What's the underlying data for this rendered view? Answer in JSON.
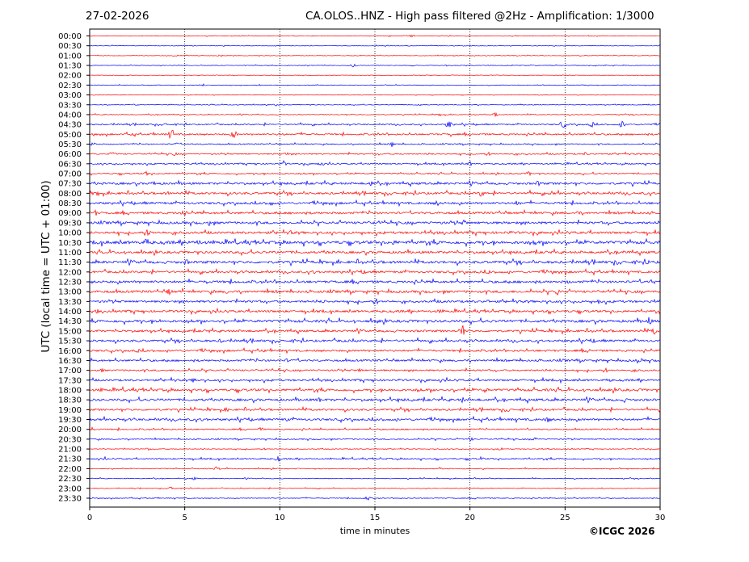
{
  "header": {
    "date": "27-02-2026",
    "title": "CA.OLOS..HNZ - High pass filtered @2Hz - Amplification: 1/3000"
  },
  "copyright": "©ICGC 2026",
  "chart_data": {
    "type": "line",
    "subtype": "helicorder",
    "xlabel": "time in minutes",
    "ylabel": "UTC (local time = UTC + 01:00)",
    "xlim": [
      0,
      30
    ],
    "x_ticks": [
      "0",
      "5",
      "10",
      "15",
      "20",
      "25",
      "30"
    ],
    "grid": "vertical dotted lines every 5 minutes",
    "trace_colors": [
      "#ff0000",
      "#0000ff"
    ],
    "rows": [
      {
        "label": "00:00",
        "color": "#ff0000",
        "activity": 0.05,
        "events": [
          [
            16.9,
            0.25
          ]
        ]
      },
      {
        "label": "00:30",
        "color": "#0000ff",
        "activity": 0.05,
        "events": []
      },
      {
        "label": "01:00",
        "color": "#ff0000",
        "activity": 0.05,
        "events": [
          [
            6.9,
            0.2
          ]
        ]
      },
      {
        "label": "01:30",
        "color": "#0000ff",
        "activity": 0.05,
        "events": [
          [
            13.9,
            0.25
          ]
        ]
      },
      {
        "label": "02:00",
        "color": "#ff0000",
        "activity": 0.04,
        "events": []
      },
      {
        "label": "02:30",
        "color": "#0000ff",
        "activity": 0.05,
        "events": [
          [
            6.0,
            0.15
          ]
        ]
      },
      {
        "label": "03:00",
        "color": "#ff0000",
        "activity": 0.04,
        "events": []
      },
      {
        "label": "03:30",
        "color": "#0000ff",
        "activity": 0.06,
        "events": [
          [
            2.4,
            0.15
          ],
          [
            9.8,
            0.15
          ],
          [
            17.3,
            0.15
          ]
        ]
      },
      {
        "label": "04:00",
        "color": "#ff0000",
        "activity": 0.07,
        "events": [
          [
            18.5,
            0.3
          ],
          [
            21.3,
            0.3
          ]
        ]
      },
      {
        "label": "04:30",
        "color": "#0000ff",
        "activity": 0.12,
        "events": [
          [
            18.9,
            0.6
          ],
          [
            24.9,
            0.6
          ],
          [
            26.4,
            0.4
          ],
          [
            28.0,
            0.5
          ],
          [
            4.0,
            0.2
          ]
        ]
      },
      {
        "label": "05:00",
        "color": "#ff0000",
        "activity": 0.15,
        "events": [
          [
            4.3,
            0.8
          ],
          [
            7.6,
            0.6
          ],
          [
            2.2,
            0.25
          ],
          [
            10.2,
            0.2
          ],
          [
            19.0,
            0.3
          ]
        ]
      },
      {
        "label": "05:30",
        "color": "#0000ff",
        "activity": 0.1,
        "events": [
          [
            0.2,
            0.3
          ],
          [
            15.9,
            0.4
          ],
          [
            4.6,
            0.2
          ]
        ]
      },
      {
        "label": "06:00",
        "color": "#ff0000",
        "activity": 0.12,
        "events": [
          [
            1.2,
            0.3
          ],
          [
            4.5,
            0.3
          ],
          [
            10.3,
            0.3
          ],
          [
            26.1,
            0.3
          ]
        ]
      },
      {
        "label": "06:30",
        "color": "#0000ff",
        "activity": 0.12,
        "events": [
          [
            10.2,
            0.4
          ],
          [
            12.1,
            0.3
          ],
          [
            20.0,
            0.3
          ]
        ]
      },
      {
        "label": "07:00",
        "color": "#ff0000",
        "activity": 0.12,
        "events": [
          [
            3.0,
            0.3
          ],
          [
            23.1,
            0.3
          ]
        ]
      },
      {
        "label": "07:30",
        "color": "#0000ff",
        "activity": 0.2,
        "events": [
          [
            3.4,
            0.4
          ],
          [
            14.8,
            0.4
          ],
          [
            23.6,
            0.4
          ]
        ]
      },
      {
        "label": "08:00",
        "color": "#ff0000",
        "activity": 0.2,
        "events": [
          [
            0.5,
            0.5
          ],
          [
            4.1,
            0.3
          ],
          [
            20.6,
            0.5
          ],
          [
            24.3,
            0.3
          ]
        ]
      },
      {
        "label": "08:30",
        "color": "#0000ff",
        "activity": 0.2,
        "events": [
          [
            9.5,
            0.4
          ],
          [
            18.3,
            0.4
          ],
          [
            22.5,
            0.4
          ]
        ]
      },
      {
        "label": "09:00",
        "color": "#ff0000",
        "activity": 0.2,
        "events": [
          [
            0.3,
            0.4
          ],
          [
            4.9,
            0.4
          ],
          [
            25.7,
            0.3
          ]
        ]
      },
      {
        "label": "09:30",
        "color": "#0000ff",
        "activity": 0.22,
        "events": [
          [
            6.3,
            0.4
          ],
          [
            15.0,
            0.3
          ],
          [
            19.7,
            0.4
          ]
        ]
      },
      {
        "label": "10:00",
        "color": "#ff0000",
        "activity": 0.22,
        "events": [
          [
            3.1,
            0.5
          ],
          [
            10.6,
            0.3
          ],
          [
            22.1,
            0.3
          ]
        ]
      },
      {
        "label": "10:30",
        "color": "#0000ff",
        "activity": 0.28,
        "events": [
          [
            3.0,
            0.6
          ],
          [
            5.7,
            0.5
          ],
          [
            16.0,
            0.4
          ],
          [
            23.4,
            0.4
          ]
        ]
      },
      {
        "label": "11:00",
        "color": "#ff0000",
        "activity": 0.22,
        "events": [
          [
            8.3,
            0.5
          ],
          [
            12.6,
            0.3
          ],
          [
            28.1,
            0.3
          ]
        ]
      },
      {
        "label": "11:30",
        "color": "#0000ff",
        "activity": 0.24,
        "events": [
          [
            5.1,
            0.4
          ],
          [
            27.7,
            0.4
          ],
          [
            29.3,
            0.4
          ]
        ]
      },
      {
        "label": "12:00",
        "color": "#ff0000",
        "activity": 0.2,
        "events": [
          [
            11.8,
            0.3
          ],
          [
            14.4,
            0.3
          ],
          [
            21.0,
            0.3
          ]
        ]
      },
      {
        "label": "12:30",
        "color": "#0000ff",
        "activity": 0.22,
        "events": [
          [
            6.2,
            0.3
          ],
          [
            25.1,
            0.3
          ],
          [
            29.6,
            0.4
          ]
        ]
      },
      {
        "label": "13:00",
        "color": "#ff0000",
        "activity": 0.22,
        "events": [
          [
            4.2,
            0.5
          ],
          [
            7.2,
            0.3
          ],
          [
            24.6,
            0.5
          ]
        ]
      },
      {
        "label": "13:30",
        "color": "#0000ff",
        "activity": 0.2,
        "events": [
          [
            12.3,
            0.3
          ],
          [
            20.9,
            0.3
          ],
          [
            26.8,
            0.4
          ]
        ]
      },
      {
        "label": "14:00",
        "color": "#ff0000",
        "activity": 0.2,
        "events": [
          [
            0.4,
            0.3
          ],
          [
            18.4,
            0.3
          ],
          [
            24.5,
            0.3
          ]
        ]
      },
      {
        "label": "14:30",
        "color": "#0000ff",
        "activity": 0.24,
        "events": [
          [
            3.6,
            0.4
          ],
          [
            15.1,
            0.3
          ],
          [
            29.4,
            0.6
          ]
        ]
      },
      {
        "label": "15:00",
        "color": "#ff0000",
        "activity": 0.2,
        "events": [
          [
            19.6,
            0.9
          ],
          [
            29.7,
            0.5
          ],
          [
            6.2,
            0.3
          ]
        ]
      },
      {
        "label": "15:30",
        "color": "#0000ff",
        "activity": 0.2,
        "events": [
          [
            6.9,
            0.3
          ],
          [
            13.3,
            0.3
          ],
          [
            26.5,
            0.3
          ]
        ]
      },
      {
        "label": "16:00",
        "color": "#ff0000",
        "activity": 0.18,
        "events": [
          [
            2.5,
            0.3
          ],
          [
            9.1,
            0.3
          ],
          [
            26.2,
            0.4
          ]
        ]
      },
      {
        "label": "16:30",
        "color": "#0000ff",
        "activity": 0.18,
        "events": [
          [
            28.9,
            0.5
          ],
          [
            10.4,
            0.3
          ]
        ]
      },
      {
        "label": "17:00",
        "color": "#ff0000",
        "activity": 0.15,
        "events": [
          [
            0.6,
            0.3
          ],
          [
            14.2,
            0.3
          ],
          [
            28.7,
            0.3
          ]
        ]
      },
      {
        "label": "17:30",
        "color": "#0000ff",
        "activity": 0.18,
        "events": [
          [
            5.5,
            0.4
          ],
          [
            27.3,
            0.3
          ]
        ]
      },
      {
        "label": "18:00",
        "color": "#ff0000",
        "activity": 0.22,
        "events": [
          [
            0.6,
            0.3
          ],
          [
            17.3,
            0.4
          ],
          [
            20.8,
            0.4
          ]
        ]
      },
      {
        "label": "18:30",
        "color": "#0000ff",
        "activity": 0.22,
        "events": [
          [
            12.1,
            0.4
          ],
          [
            19.6,
            0.4
          ],
          [
            28.1,
            0.4
          ]
        ]
      },
      {
        "label": "19:00",
        "color": "#ff0000",
        "activity": 0.18,
        "events": [
          [
            7.2,
            0.3
          ],
          [
            22.0,
            0.4
          ]
        ]
      },
      {
        "label": "19:30",
        "color": "#0000ff",
        "activity": 0.2,
        "events": [
          [
            6.0,
            0.4
          ],
          [
            10.3,
            0.3
          ],
          [
            24.1,
            0.4
          ]
        ]
      },
      {
        "label": "20:00",
        "color": "#ff0000",
        "activity": 0.12,
        "events": [
          [
            0.1,
            0.3
          ],
          [
            9.0,
            0.3
          ]
        ]
      },
      {
        "label": "20:30",
        "color": "#0000ff",
        "activity": 0.1,
        "events": [
          [
            20.0,
            0.3
          ],
          [
            23.4,
            0.3
          ]
        ]
      },
      {
        "label": "21:00",
        "color": "#ff0000",
        "activity": 0.07,
        "events": [
          [
            3.1,
            0.2
          ],
          [
            21.6,
            0.2
          ]
        ]
      },
      {
        "label": "21:30",
        "color": "#0000ff",
        "activity": 0.12,
        "events": [
          [
            0.8,
            0.3
          ],
          [
            9.9,
            0.4
          ],
          [
            20.6,
            0.3
          ]
        ]
      },
      {
        "label": "22:00",
        "color": "#ff0000",
        "activity": 0.08,
        "events": [
          [
            6.7,
            0.3
          ],
          [
            18.4,
            0.2
          ]
        ]
      },
      {
        "label": "22:30",
        "color": "#0000ff",
        "activity": 0.07,
        "events": [
          [
            5.5,
            0.2
          ]
        ]
      },
      {
        "label": "23:00",
        "color": "#ff0000",
        "activity": 0.06,
        "events": [
          [
            4.3,
            0.3
          ]
        ]
      },
      {
        "label": "23:30",
        "color": "#0000ff",
        "activity": 0.07,
        "events": [
          [
            14.6,
            0.3
          ],
          [
            20.3,
            0.2
          ]
        ]
      }
    ]
  }
}
